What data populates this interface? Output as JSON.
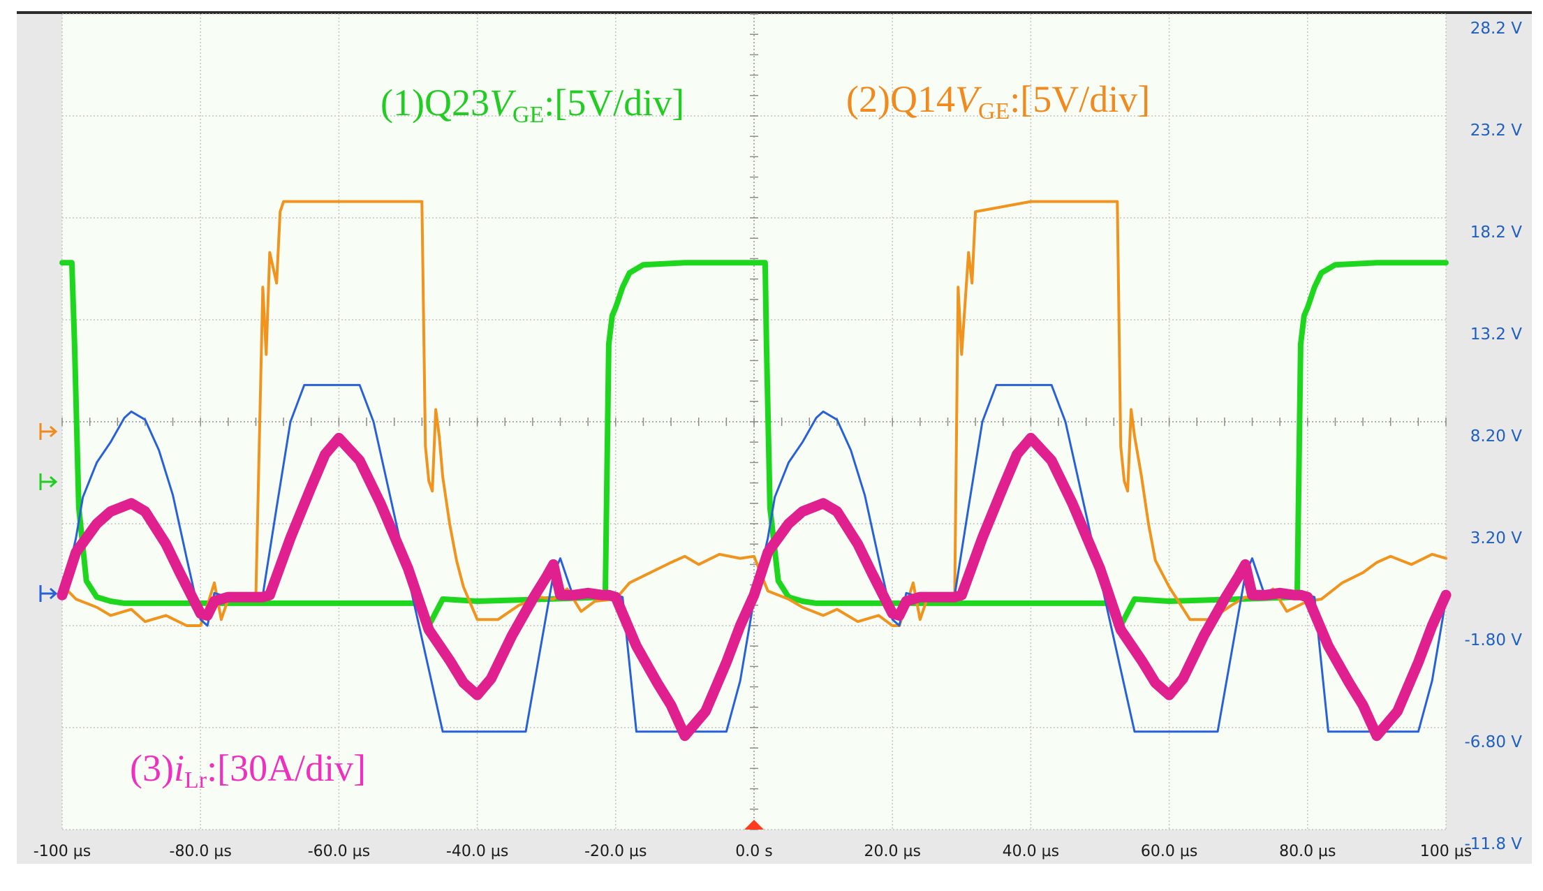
{
  "chart_data": {
    "type": "line",
    "xlabel": "",
    "ylabel": "",
    "x_unit": "µs",
    "xlim": [
      -100,
      100
    ],
    "ylim": [
      -11.8,
      28.2
    ],
    "x_ticks": [
      "-100 µs",
      "-80.0 µs",
      "-60.0 µs",
      "-40.0 µs",
      "-20.0 µs",
      "0.0 s",
      "20.0 µs",
      "40.0 µs",
      "60.0 µs",
      "80.0 µs",
      "100 µs"
    ],
    "y_ticks": [
      "28.2 V",
      "23.2 V",
      "18.2 V",
      "13.2 V",
      "8.20 V",
      "3.20 V",
      "-1.80 V",
      "-6.80 V",
      "-11.8 V"
    ],
    "grid": true,
    "annotations": {
      "ch1": {
        "prefix": "(1)Q23",
        "var": "V",
        "sub": "GE",
        "suffix": ":[5V/div]",
        "color": "#22cc22"
      },
      "ch2": {
        "prefix": "(2)Q14",
        "var": "V",
        "sub": "GE",
        "suffix": ":[5V/div]",
        "color": "#f08a1e"
      },
      "ch3": {
        "prefix": "(3)",
        "var": "i",
        "sub": "Lr",
        "suffix": ":[30A/div]",
        "color": "#ee2fbf"
      }
    },
    "series": [
      {
        "color": "#1fd61f",
        "x": [
          -100,
          -98.6,
          -98.2,
          -97.6,
          -96.5,
          -95,
          -93,
          -91,
          -80,
          -70,
          -60,
          -50,
          -48,
          -47,
          -45,
          -40,
          -30,
          -21.5,
          -21,
          -20.5,
          -20,
          -19,
          -18,
          -16,
          -10,
          0,
          1.6,
          1.8,
          2.3,
          3.5,
          5,
          7,
          9,
          20,
          30,
          40,
          50,
          52,
          53,
          55,
          60,
          70,
          78.5,
          79,
          79.5,
          80,
          81,
          82,
          84,
          90,
          100
        ],
        "y": [
          16,
          16,
          12,
          4,
          0.4,
          -0.4,
          -0.6,
          -0.7,
          -0.7,
          -0.7,
          -0.7,
          -0.7,
          -0.7,
          -1.8,
          -0.5,
          -0.6,
          -0.5,
          -0.4,
          12,
          13.4,
          13.8,
          14.8,
          15.5,
          15.9,
          16,
          16,
          16,
          12,
          4,
          0.4,
          -0.4,
          -0.6,
          -0.7,
          -0.7,
          -0.7,
          -0.7,
          -0.7,
          -0.7,
          -1.8,
          -0.5,
          -0.6,
          -0.5,
          -0.4,
          12,
          13.4,
          13.8,
          14.8,
          15.5,
          15.9,
          16,
          16
        ]
      },
      {
        "color": "#f0941e",
        "x": [
          -100,
          -98,
          -95,
          -93,
          -90,
          -88,
          -85,
          -82,
          -80,
          -79,
          -78,
          -77,
          -76,
          -75,
          -72,
          -71,
          -70.5,
          -70,
          -69,
          -68.5,
          -68,
          -60,
          -50,
          -48,
          -47.5,
          -47,
          -46.5,
          -46,
          -45.5,
          -45,
          -44,
          -43,
          -42,
          -40,
          -37,
          -34,
          -31,
          -29,
          -27,
          -25,
          -23,
          -20,
          -18,
          -15,
          -12,
          -10,
          -8,
          -5,
          -2,
          0,
          2,
          5,
          7,
          10,
          12,
          15,
          18,
          20,
          21,
          22,
          23,
          24,
          25,
          28,
          29,
          29.5,
          30,
          31,
          31.5,
          32,
          40,
          50,
          52,
          52.5,
          53,
          53.5,
          54,
          54.5,
          55,
          56,
          57,
          58,
          60,
          63,
          66,
          69,
          71,
          73,
          75,
          77,
          80,
          82,
          85,
          88,
          90,
          92,
          95,
          98,
          100
        ],
        "y": [
          0.2,
          -0.5,
          -0.9,
          -1.3,
          -1.0,
          -1.6,
          -1.3,
          -1.8,
          -1.8,
          -0.8,
          0.3,
          -1.5,
          -0.5,
          -0.4,
          -0.3,
          14.8,
          11.5,
          16.5,
          15.0,
          18.5,
          19,
          19,
          19,
          19,
          7,
          5.3,
          4.8,
          8.8,
          7.5,
          5.5,
          3.2,
          1.4,
          0.1,
          -1.5,
          -1.5,
          -0.8,
          -0.4,
          -0.5,
          0.0,
          -1.1,
          -0.6,
          -0.5,
          0.3,
          0.8,
          1.3,
          1.6,
          1.2,
          1.7,
          1.5,
          1.6,
          -0.1,
          -0.5,
          -0.9,
          -1.3,
          -1.0,
          -1.6,
          -1.3,
          -1.8,
          -1.8,
          -0.8,
          0.3,
          -1.5,
          -0.5,
          -0.4,
          -0.3,
          14.8,
          11.5,
          16.5,
          15.0,
          18.5,
          19,
          19,
          19,
          19,
          7,
          5.3,
          4.8,
          8.8,
          7.5,
          5.5,
          3.2,
          1.4,
          0.1,
          -1.5,
          -1.5,
          -0.8,
          -0.4,
          -0.5,
          0.0,
          -1.1,
          -0.6,
          -0.5,
          0.3,
          0.8,
          1.3,
          1.6,
          1.2,
          1.7,
          1.5
        ]
      },
      {
        "color": "#2860d8",
        "x": [
          -100,
          -98,
          -97,
          -95,
          -93,
          -91,
          -90,
          -88,
          -86,
          -84,
          -82,
          -80,
          -79,
          -78,
          -76,
          -74,
          -72,
          -71,
          -69,
          -67,
          -65,
          -57,
          -55,
          -50,
          -45,
          -43,
          -35,
          -33,
          -29,
          -28,
          -26,
          -24,
          -22,
          -21,
          -20,
          -19,
          -17,
          -15,
          -13,
          -11,
          -10,
          -8,
          -6,
          -4,
          -2,
          0,
          2,
          3,
          5,
          7,
          9,
          10,
          12,
          14,
          16,
          18,
          20,
          21,
          22,
          24,
          26,
          28,
          29,
          31,
          33,
          35,
          43,
          45,
          50,
          55,
          57,
          65,
          67,
          71,
          72,
          74,
          76,
          78,
          79,
          80,
          81,
          83,
          85,
          87,
          89,
          90,
          92,
          94,
          96,
          98,
          100
        ],
        "y": [
          -0.5,
          2.5,
          4.5,
          6.2,
          7.2,
          8.4,
          8.7,
          8.3,
          6.8,
          4.6,
          1.5,
          -1.5,
          -1.8,
          -0.2,
          -0.4,
          -0.3,
          -0.3,
          -0.3,
          4.0,
          8.2,
          10,
          10,
          8.2,
          0.6,
          -7,
          -7,
          -7,
          -7,
          0.7,
          1.5,
          -0.5,
          -0.4,
          -0.4,
          -0.4,
          -0.3,
          -0.4,
          -7,
          -7,
          -7,
          -7,
          -7,
          -7,
          -7,
          -7,
          -4.5,
          -0.5,
          2.5,
          4.5,
          6.2,
          7.2,
          8.4,
          8.7,
          8.3,
          6.8,
          4.6,
          1.5,
          -1.5,
          -1.8,
          -0.2,
          -0.4,
          -0.3,
          -0.3,
          -0.3,
          4.0,
          8.2,
          10,
          10,
          8.2,
          0.6,
          -7,
          -7,
          -7,
          -7,
          0.7,
          1.5,
          -0.5,
          -0.4,
          -0.4,
          -0.4,
          -0.3,
          -0.4,
          -7,
          -7,
          -7,
          -7,
          -7,
          -7,
          -7,
          -7,
          -4.5,
          -0.5
        ]
      },
      {
        "color": "#e0208f",
        "x": [
          -100,
          -98,
          -95,
          -93,
          -90,
          -88,
          -85,
          -83,
          -80,
          -79,
          -78,
          -76,
          -74,
          -72,
          -71,
          -70,
          -67,
          -64,
          -62,
          -60,
          -57,
          -54,
          -50,
          -47,
          -44,
          -42,
          -40,
          -38,
          -35,
          -32,
          -30,
          -29,
          -28,
          -26,
          -24,
          -22,
          -21,
          -20,
          -17,
          -14,
          -12,
          -10,
          -7,
          -4,
          -2,
          0,
          2,
          5,
          7,
          10,
          12,
          15,
          17,
          20,
          21,
          22,
          24,
          26,
          28,
          29,
          30,
          33,
          36,
          38,
          40,
          43,
          46,
          50,
          53,
          56,
          58,
          60,
          62,
          65,
          68,
          70,
          71,
          72,
          74,
          76,
          78,
          79,
          80,
          83,
          86,
          88,
          90,
          93,
          96,
          98,
          100
        ],
        "y": [
          -0.3,
          1.8,
          3.2,
          3.8,
          4.2,
          3.8,
          2.2,
          0.8,
          -1.2,
          -1.3,
          -0.6,
          -0.4,
          -0.4,
          -0.4,
          -0.4,
          -0.3,
          2.5,
          5.0,
          6.6,
          7.4,
          6.3,
          4.2,
          1.0,
          -2.0,
          -3.5,
          -4.6,
          -5.2,
          -4.4,
          -2.3,
          -0.5,
          0.6,
          1.2,
          -0.3,
          -0.3,
          -0.2,
          -0.3,
          -0.3,
          -0.4,
          -2.8,
          -4.6,
          -5.7,
          -7.2,
          -6.0,
          -3.6,
          -1.8,
          -0.3,
          1.8,
          3.2,
          3.8,
          4.2,
          3.8,
          2.2,
          0.8,
          -1.2,
          -1.3,
          -0.6,
          -0.4,
          -0.4,
          -0.4,
          -0.4,
          -0.3,
          2.5,
          5.0,
          6.6,
          7.4,
          6.3,
          4.2,
          1.0,
          -2.0,
          -3.5,
          -4.6,
          -5.2,
          -4.4,
          -2.3,
          -0.5,
          0.6,
          1.2,
          -0.3,
          -0.3,
          -0.2,
          -0.3,
          -0.3,
          -0.4,
          -2.8,
          -4.6,
          -5.7,
          -7.2,
          -6.0,
          -3.6,
          -1.8,
          -0.3
        ]
      }
    ]
  }
}
